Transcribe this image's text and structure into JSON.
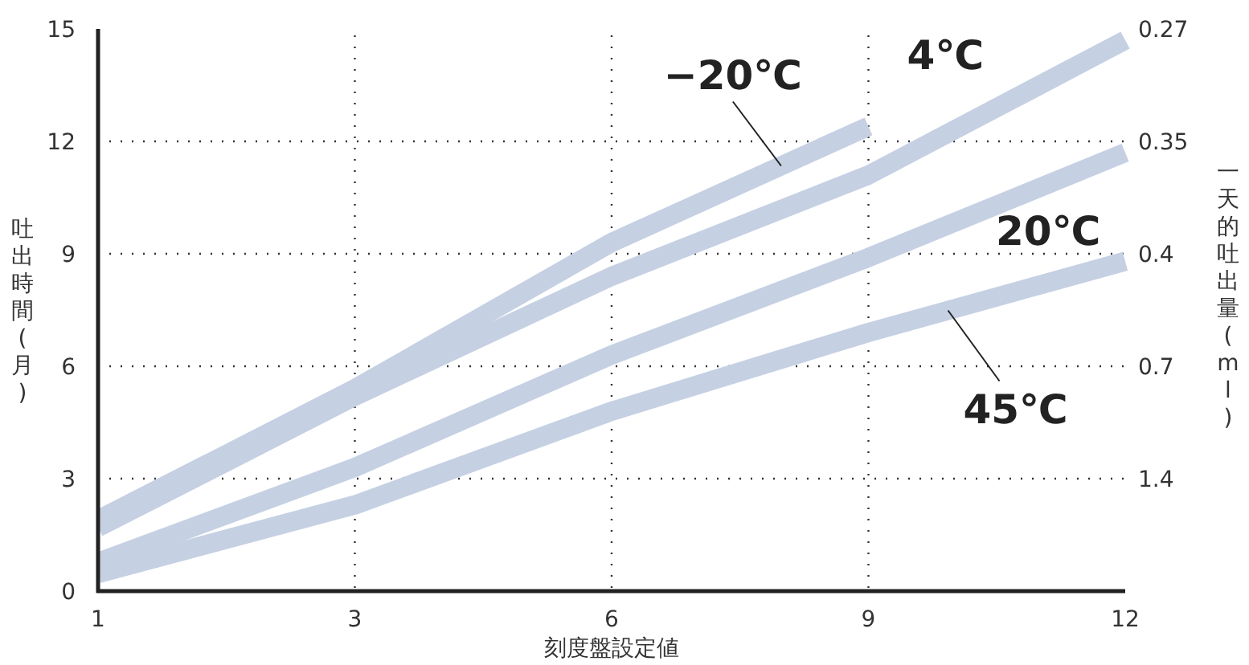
{
  "chart_data": {
    "type": "line",
    "xlabel": "刻度盤設定値",
    "ylabel": "吐出時間(月)",
    "y2label": "一天的吐出量(ml)",
    "categories": [
      "1",
      "3",
      "6",
      "9",
      "12"
    ],
    "ylim": [
      0,
      15
    ],
    "yticks": [
      0,
      3,
      6,
      9,
      12,
      15
    ],
    "annotations": [
      "0.27",
      "0.35",
      "0.4",
      "0.7",
      "1.4"
    ],
    "grid": true,
    "legend": false,
    "marker": "none",
    "line_style": "solid",
    "series": [
      {
        "name": "−20℃",
        "color": "#c5d0e3",
        "values": [
          1.9,
          5.4,
          9.3,
          12.4,
          null
        ]
      },
      {
        "name": "4℃",
        "color": "#c5d0e3",
        "values": [
          1.7,
          5.2,
          8.4,
          11.1,
          14.7
        ]
      },
      {
        "name": "20℃",
        "color": "#c5d0e3",
        "values": [
          0.77,
          3.3,
          6.3,
          8.9,
          11.7
        ]
      },
      {
        "name": "45℃",
        "color": "#c5d0e3",
        "values": [
          0.47,
          2.3,
          4.8,
          6.9,
          8.8
        ]
      }
    ]
  }
}
